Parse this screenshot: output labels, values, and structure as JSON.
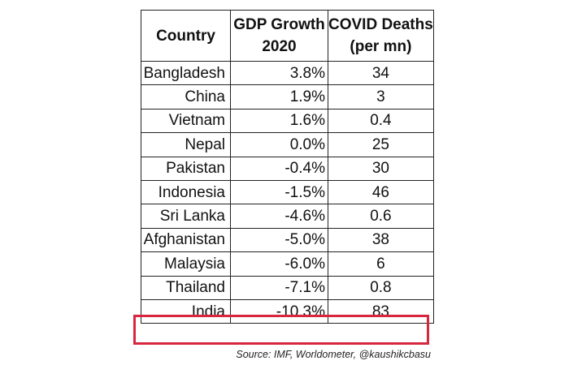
{
  "chart_data": {
    "type": "table",
    "columns": [
      {
        "key": "country",
        "lines": [
          "Country"
        ]
      },
      {
        "key": "gdp",
        "lines": [
          "GDP Growth",
          "2020"
        ]
      },
      {
        "key": "deaths",
        "lines": [
          "COVID Deaths",
          "(per mn)"
        ]
      }
    ],
    "rows": [
      {
        "country": "Bangladesh",
        "gdp": "3.8%",
        "deaths": "34"
      },
      {
        "country": "China",
        "gdp": "1.9%",
        "deaths": "3"
      },
      {
        "country": "Vietnam",
        "gdp": "1.6%",
        "deaths": "0.4"
      },
      {
        "country": "Nepal",
        "gdp": "0.0%",
        "deaths": "25"
      },
      {
        "country": "Pakistan",
        "gdp": "-0.4%",
        "deaths": "30"
      },
      {
        "country": "Indonesia",
        "gdp": "-1.5%",
        "deaths": "46"
      },
      {
        "country": "Sri Lanka",
        "gdp": "-4.6%",
        "deaths": "0.6"
      },
      {
        "country": "Afghanistan",
        "gdp": "-5.0%",
        "deaths": "38"
      },
      {
        "country": "Malaysia",
        "gdp": "-6.0%",
        "deaths": "6"
      },
      {
        "country": "Thailand",
        "gdp": "-7.1%",
        "deaths": "0.8"
      },
      {
        "country": "India",
        "gdp": "-10.3%",
        "deaths": "83"
      }
    ],
    "highlighted_row": "India",
    "highlight_color": "#d7263d"
  },
  "source": "Source: IMF, Worldometer, @kaushikcbasu"
}
